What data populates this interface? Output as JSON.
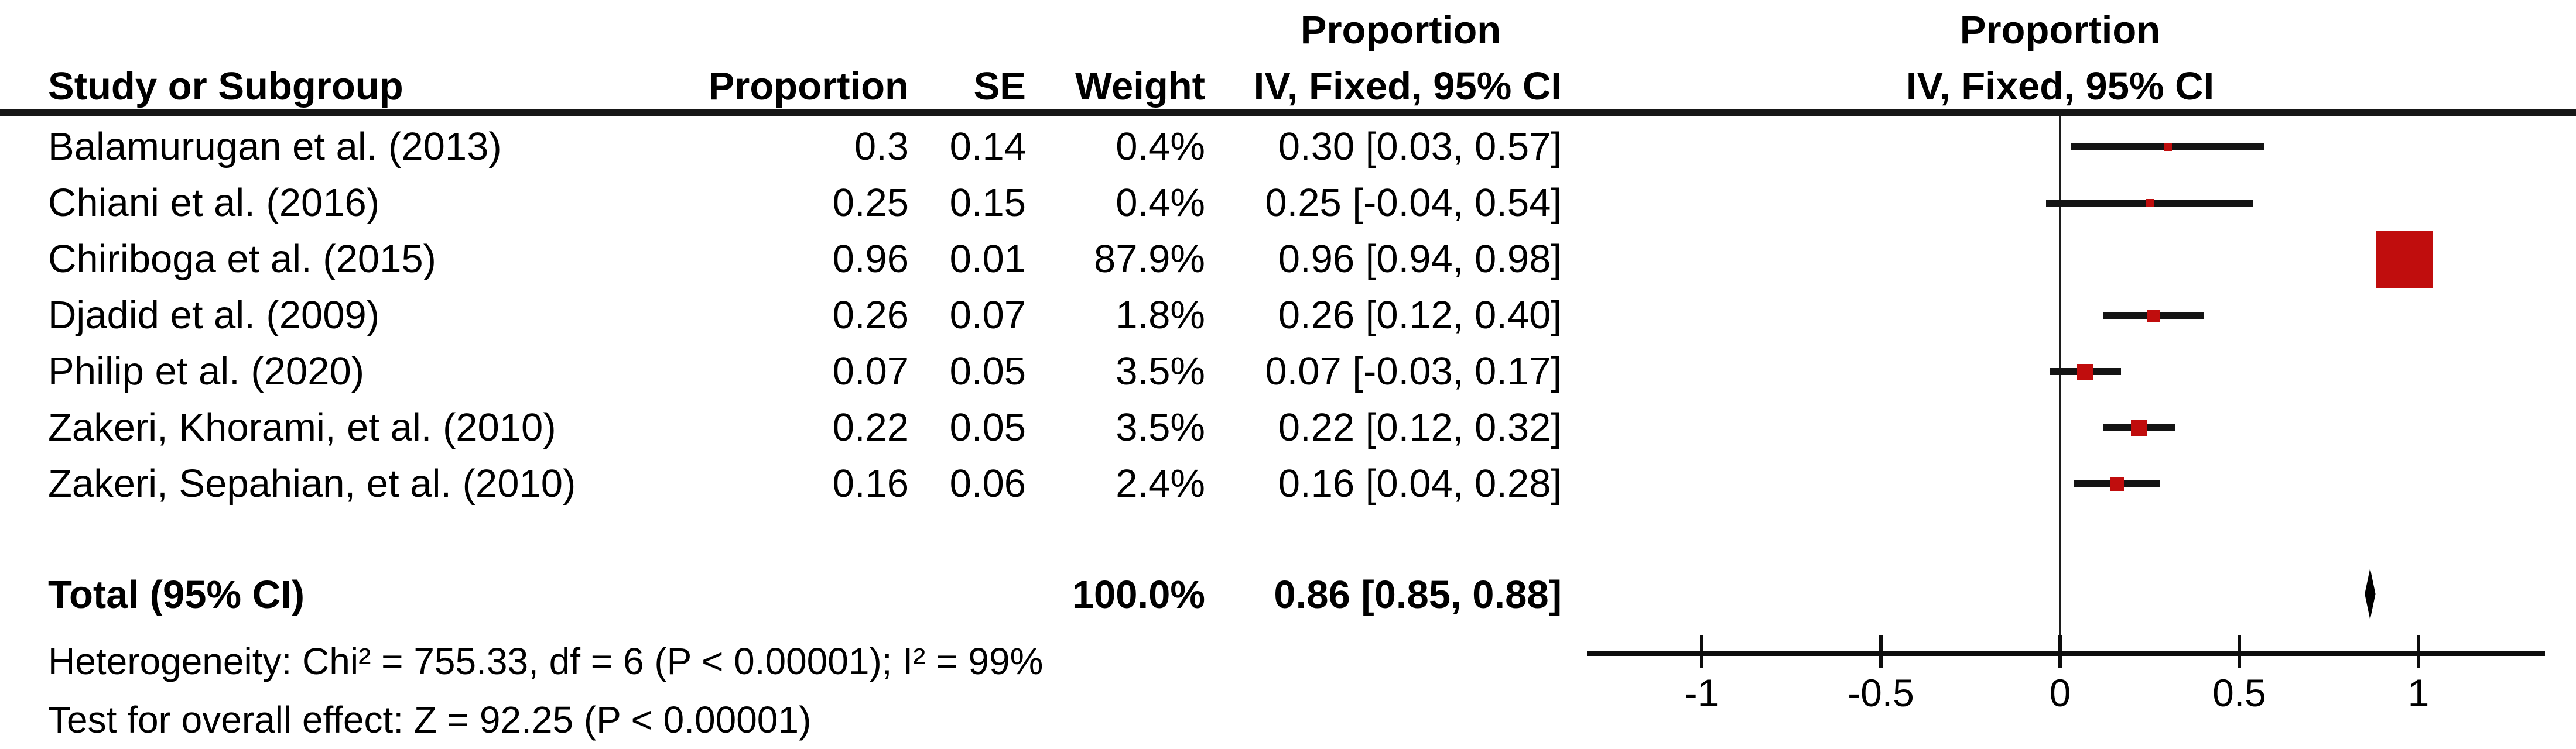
{
  "chart_data": {
    "type": "forest",
    "effect_measure": "Proportion",
    "model": "IV, Fixed, 95% CI",
    "columns": {
      "study": "Study or Subgroup",
      "proportion": "Proportion",
      "se": "SE",
      "weight": "Weight",
      "ci_line1": "Proportion",
      "ci_line2": "IV, Fixed, 95% CI"
    },
    "plot_header": {
      "line1": "Proportion",
      "line2": "IV, Fixed, 95% CI"
    },
    "studies": [
      {
        "name": "Balamurugan et al. (2013)",
        "proportion": "0.3",
        "se": "0.14",
        "weight": "0.4%",
        "weight_pct": 0.4,
        "ci_text": "0.30 [0.03, 0.57]",
        "est": 0.3,
        "lo": 0.03,
        "hi": 0.57
      },
      {
        "name": "Chiani et al. (2016)",
        "proportion": "0.25",
        "se": "0.15",
        "weight": "0.4%",
        "weight_pct": 0.4,
        "ci_text": "0.25 [-0.04, 0.54]",
        "est": 0.25,
        "lo": -0.04,
        "hi": 0.54
      },
      {
        "name": "Chiriboga et al. (2015)",
        "proportion": "0.96",
        "se": "0.01",
        "weight": "87.9%",
        "weight_pct": 87.9,
        "ci_text": "0.96 [0.94, 0.98]",
        "est": 0.96,
        "lo": 0.94,
        "hi": 0.98
      },
      {
        "name": "Djadid et al. (2009)",
        "proportion": "0.26",
        "se": "0.07",
        "weight": "1.8%",
        "weight_pct": 1.8,
        "ci_text": "0.26 [0.12, 0.40]",
        "est": 0.26,
        "lo": 0.12,
        "hi": 0.4
      },
      {
        "name": "Philip et al. (2020)",
        "proportion": "0.07",
        "se": "0.05",
        "weight": "3.5%",
        "weight_pct": 3.5,
        "ci_text": "0.07 [-0.03, 0.17]",
        "est": 0.07,
        "lo": -0.03,
        "hi": 0.17
      },
      {
        "name": "Zakeri, Khorami, et al. (2010)",
        "proportion": "0.22",
        "se": "0.05",
        "weight": "3.5%",
        "weight_pct": 3.5,
        "ci_text": "0.22 [0.12, 0.32]",
        "est": 0.22,
        "lo": 0.12,
        "hi": 0.32
      },
      {
        "name": "Zakeri, Sepahian, et al. (2010)",
        "proportion": "0.16",
        "se": "0.06",
        "weight": "2.4%",
        "weight_pct": 2.4,
        "ci_text": "0.16 [0.04, 0.28]",
        "est": 0.16,
        "lo": 0.04,
        "hi": 0.28
      }
    ],
    "total": {
      "label": "Total (95% CI)",
      "weight": "100.0%",
      "ci_text": "0.86 [0.85, 0.88]",
      "est": 0.86,
      "lo": 0.85,
      "hi": 0.88
    },
    "heterogeneity": "Heterogeneity: Chi² = 755.33, df = 6 (P < 0.00001); I² = 99%",
    "overall_effect": "Test for overall effect: Z = 92.25 (P < 0.00001)",
    "axis": {
      "ticks": [
        -1,
        -0.5,
        0,
        0.5,
        1
      ],
      "tick_labels": [
        "-1",
        "-0.5",
        "0",
        "0.5",
        "1"
      ],
      "xmin": -1.32,
      "xmax": 1.35,
      "zero_line": 0
    },
    "colors": {
      "marker": "#c00d0d",
      "ci_line": "#141414",
      "diamond": "#000000",
      "text": "#000000"
    }
  }
}
